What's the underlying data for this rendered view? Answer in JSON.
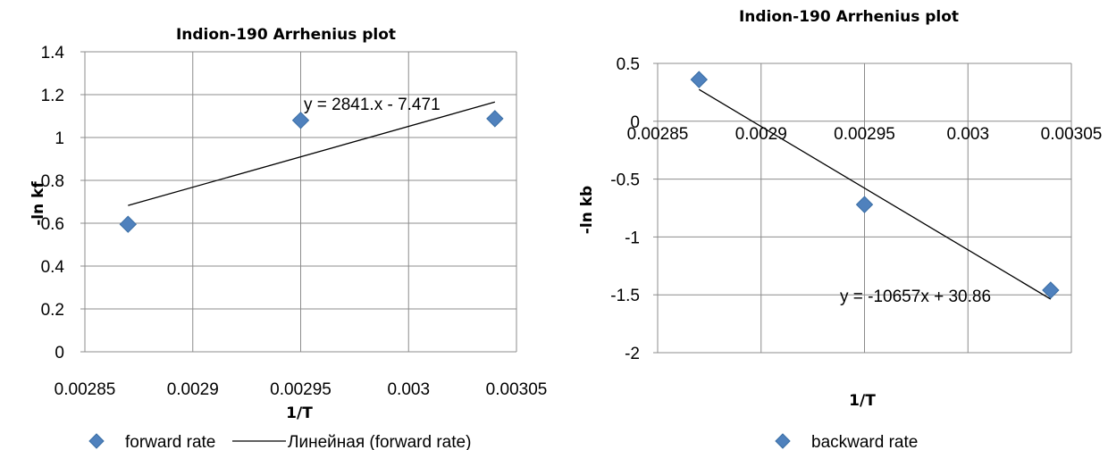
{
  "colors": {
    "marker": "#4F81BD",
    "marker_stroke": "#3A6EA5",
    "grid": "#8C8C8C",
    "trendline": "#000000"
  },
  "chart_data": [
    {
      "type": "scatter",
      "title": "Indion-190 Arrhenius plot",
      "xlabel": "1/T",
      "ylabel": "-ln kf",
      "xlim": [
        0.00285,
        0.00305
      ],
      "ylim": [
        0,
        1.4
      ],
      "x_ticks": [
        "0.00285",
        "0.0029",
        "0.00295",
        "0.003",
        "0.00305"
      ],
      "y_ticks": [
        "0",
        "0.2",
        "0.4",
        "0.6",
        "0.8",
        "1",
        "1.2",
        "1.4"
      ],
      "grid": true,
      "series": [
        {
          "name": "forward rate",
          "marker": "diamond",
          "x": [
            0.00287,
            0.00295,
            0.00304
          ],
          "y": [
            0.595,
            1.08,
            1.088
          ]
        }
      ],
      "trendline": {
        "legend_label": "Линейная (forward rate)",
        "equation_label": "y = 2841.x - 7.471",
        "slope": 2841,
        "intercept": -7.471,
        "x_range": [
          0.00287,
          0.00304
        ]
      },
      "legend_position": "bottom"
    },
    {
      "type": "scatter",
      "title": "Indion-190 Arrhenius plot",
      "xlabel": "1/T",
      "ylabel": "-ln kb",
      "xlim": [
        0.00285,
        0.00305
      ],
      "ylim": [
        -2,
        0.5
      ],
      "x_ticks": [
        "0.00285",
        "0.0029",
        "0.00295",
        "0.003",
        "0.00305"
      ],
      "y_ticks": [
        "-2",
        "-1.5",
        "-1",
        "-0.5",
        "0",
        "0.5"
      ],
      "grid": true,
      "series": [
        {
          "name": "backward rate",
          "marker": "diamond",
          "x": [
            0.00287,
            0.00295,
            0.00304
          ],
          "y": [
            0.36,
            -0.72,
            -1.46
          ]
        }
      ],
      "trendline": {
        "equation_label": "y = -10657x + 30.86",
        "slope": -10657,
        "intercept": 30.86,
        "x_range": [
          0.00287,
          0.00304
        ]
      },
      "legend_position": "bottom"
    }
  ]
}
